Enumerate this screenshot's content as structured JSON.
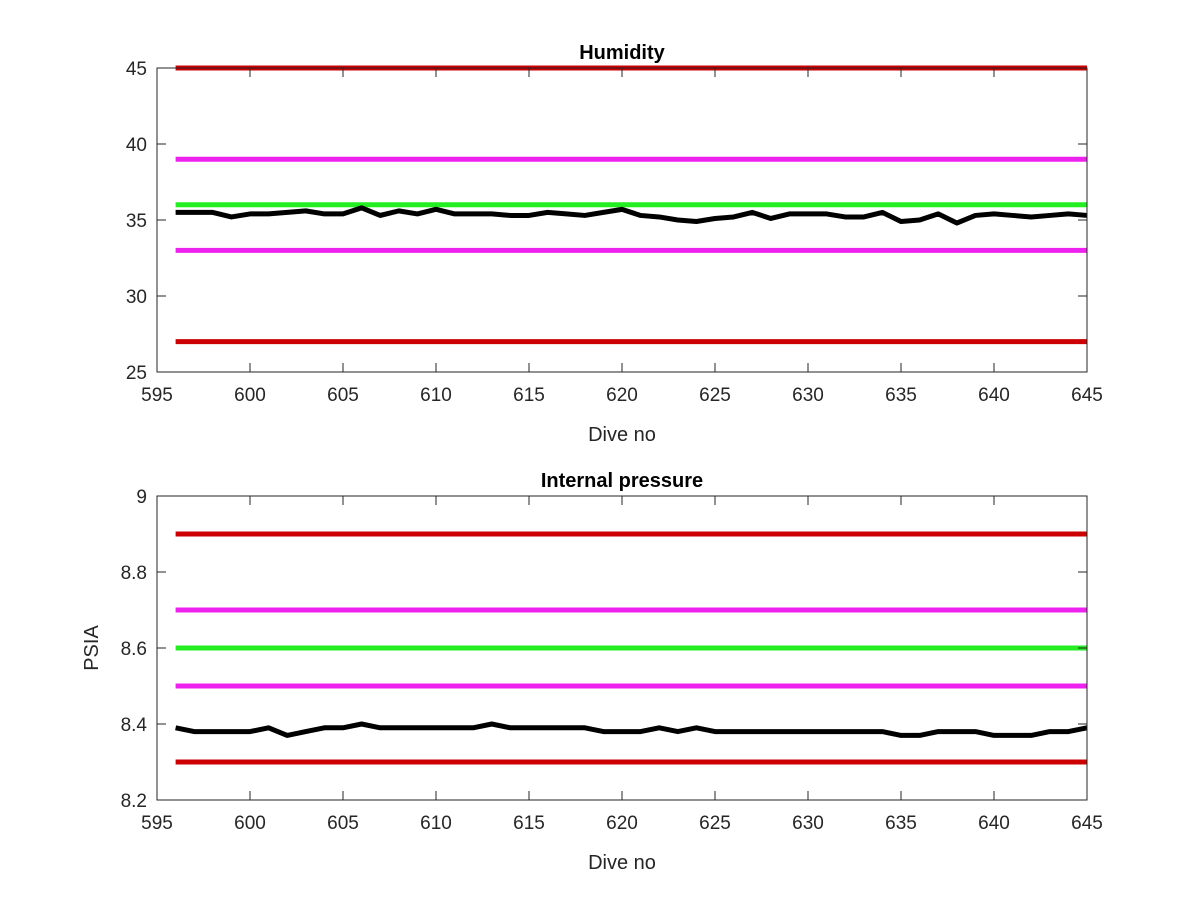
{
  "chart_data": [
    {
      "type": "line",
      "title": "Humidity",
      "xlabel": "Dive no",
      "ylabel": "",
      "xlim": [
        595,
        645
      ],
      "ylim": [
        25,
        45
      ],
      "xticks": [
        "595",
        "600",
        "605",
        "610",
        "615",
        "620",
        "625",
        "630",
        "635",
        "640",
        "645"
      ],
      "yticks": [
        "25",
        "30",
        "35",
        "40",
        "45"
      ],
      "xtick_values": [
        595,
        600,
        605,
        610,
        615,
        620,
        625,
        630,
        635,
        640,
        645
      ],
      "ytick_values": [
        25,
        30,
        35,
        40,
        45
      ],
      "reference_lines": [
        {
          "y": 45,
          "color": "#cc0000"
        },
        {
          "y": 39,
          "color": "#ee22ee"
        },
        {
          "y": 36,
          "color": "#22ee22"
        },
        {
          "y": 33,
          "color": "#ee22ee"
        },
        {
          "y": 27,
          "color": "#cc0000"
        }
      ],
      "series": [
        {
          "color": "#000000",
          "x": [
            596,
            597,
            598,
            599,
            600,
            601,
            602,
            603,
            604,
            605,
            606,
            607,
            608,
            609,
            610,
            611,
            612,
            613,
            614,
            615,
            616,
            617,
            618,
            619,
            620,
            621,
            622,
            623,
            624,
            625,
            626,
            627,
            628,
            629,
            630,
            631,
            632,
            633,
            634,
            635,
            636,
            637,
            638,
            639,
            640,
            641,
            642,
            643,
            644,
            645
          ],
          "y": [
            35.5,
            35.5,
            35.5,
            35.2,
            35.4,
            35.4,
            35.5,
            35.6,
            35.4,
            35.4,
            35.8,
            35.3,
            35.6,
            35.4,
            35.7,
            35.4,
            35.4,
            35.4,
            35.3,
            35.3,
            35.5,
            35.4,
            35.3,
            35.5,
            35.7,
            35.3,
            35.2,
            35.0,
            34.9,
            35.1,
            35.2,
            35.5,
            35.1,
            35.4,
            35.4,
            35.4,
            35.2,
            35.2,
            35.5,
            34.9,
            35.0,
            35.4,
            34.8,
            35.3,
            35.4,
            35.3,
            35.2,
            35.3,
            35.4,
            35.3
          ]
        }
      ]
    },
    {
      "type": "line",
      "title": "Internal pressure",
      "xlabel": "Dive no",
      "ylabel": "PSIA",
      "xlim": [
        595,
        645
      ],
      "ylim": [
        8.2,
        9
      ],
      "xticks": [
        "595",
        "600",
        "605",
        "610",
        "615",
        "620",
        "625",
        "630",
        "635",
        "640",
        "645"
      ],
      "yticks": [
        "8.2",
        "8.4",
        "8.6",
        "8.8",
        "9"
      ],
      "xtick_values": [
        595,
        600,
        605,
        610,
        615,
        620,
        625,
        630,
        635,
        640,
        645
      ],
      "ytick_values": [
        8.2,
        8.4,
        8.6,
        8.8,
        9
      ],
      "reference_lines": [
        {
          "y": 8.9,
          "color": "#cc0000"
        },
        {
          "y": 8.7,
          "color": "#ee22ee"
        },
        {
          "y": 8.6,
          "color": "#22ee22"
        },
        {
          "y": 8.5,
          "color": "#ee22ee"
        },
        {
          "y": 8.3,
          "color": "#cc0000"
        }
      ],
      "series": [
        {
          "color": "#000000",
          "x": [
            596,
            597,
            598,
            599,
            600,
            601,
            602,
            603,
            604,
            605,
            606,
            607,
            608,
            609,
            610,
            611,
            612,
            613,
            614,
            615,
            616,
            617,
            618,
            619,
            620,
            621,
            622,
            623,
            624,
            625,
            626,
            627,
            628,
            629,
            630,
            631,
            632,
            633,
            634,
            635,
            636,
            637,
            638,
            639,
            640,
            641,
            642,
            643,
            644,
            645
          ],
          "y": [
            8.39,
            8.38,
            8.38,
            8.38,
            8.38,
            8.39,
            8.37,
            8.38,
            8.39,
            8.39,
            8.4,
            8.39,
            8.39,
            8.39,
            8.39,
            8.39,
            8.39,
            8.4,
            8.39,
            8.39,
            8.39,
            8.39,
            8.39,
            8.38,
            8.38,
            8.38,
            8.39,
            8.38,
            8.39,
            8.38,
            8.38,
            8.38,
            8.38,
            8.38,
            8.38,
            8.38,
            8.38,
            8.38,
            8.38,
            8.37,
            8.37,
            8.38,
            8.38,
            8.38,
            8.37,
            8.37,
            8.37,
            8.38,
            8.38,
            8.39
          ]
        }
      ]
    }
  ]
}
